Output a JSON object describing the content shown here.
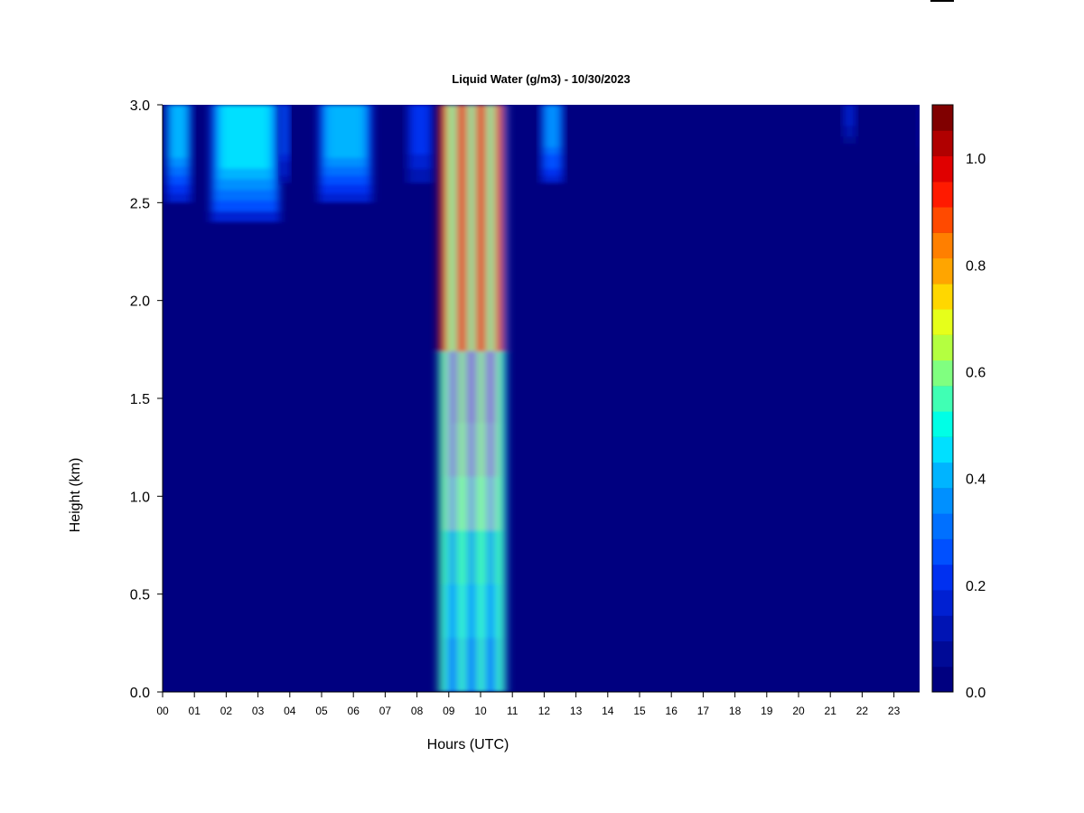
{
  "chart_data": {
    "type": "heatmap",
    "title": "Liquid Water (g/m3) - 10/30/2023",
    "xlabel": "Hours (UTC)",
    "ylabel": "Height (km)",
    "xlim": [
      0,
      24
    ],
    "ylim": [
      0,
      3.0
    ],
    "x_ticks": [
      "00",
      "01",
      "02",
      "03",
      "04",
      "05",
      "06",
      "07",
      "08",
      "09",
      "10",
      "11",
      "12",
      "13",
      "14",
      "15",
      "16",
      "17",
      "18",
      "19",
      "20",
      "21",
      "22",
      "23"
    ],
    "y_ticks": [
      "0.0",
      "0.5",
      "1.0",
      "1.5",
      "2.0",
      "2.5",
      "3.0"
    ],
    "colorbar": {
      "range": [
        0,
        1.1
      ],
      "levels": 22,
      "ticks": [
        "0.0",
        "0.2",
        "0.4",
        "0.6",
        "0.8",
        "1.0"
      ],
      "colors": [
        "#000080",
        "#000a96",
        "#0014b4",
        "#0020d2",
        "#0030f0",
        "#0050ff",
        "#0070ff",
        "#0090ff",
        "#00b4ff",
        "#00e0ff",
        "#00ffe6",
        "#40ffb4",
        "#80ff80",
        "#b4ff40",
        "#e6ff1a",
        "#ffd700",
        "#ffa500",
        "#ff7f00",
        "#ff4a00",
        "#ff1a00",
        "#e00000",
        "#b00000",
        "#800000"
      ]
    },
    "liquid_water_regions": [
      {
        "hours": [
          0.1,
          0.9
        ],
        "heights_km": [
          2.5,
          3.0
        ],
        "peak_value": 0.45
      },
      {
        "hours": [
          1.5,
          3.7
        ],
        "heights_km": [
          2.4,
          3.0
        ],
        "peak_value": 0.5
      },
      {
        "hours": [
          3.7,
          4.0
        ],
        "heights_km": [
          2.6,
          3.0
        ],
        "peak_value": 0.3
      },
      {
        "hours": [
          4.9,
          6.6
        ],
        "heights_km": [
          2.5,
          3.0
        ],
        "peak_value": 0.45
      },
      {
        "hours": [
          7.7,
          8.5
        ],
        "heights_km": [
          2.6,
          3.0
        ],
        "peak_value": 0.25
      },
      {
        "hours": [
          8.7,
          10.8
        ],
        "heights_km": [
          0.0,
          3.0
        ],
        "peak_value": 1.0
      },
      {
        "hours": [
          11.9,
          12.6
        ],
        "heights_km": [
          2.6,
          3.0
        ],
        "peak_value": 0.4
      },
      {
        "hours": [
          21.4,
          21.8
        ],
        "heights_km": [
          2.8,
          3.0
        ],
        "peak_value": 0.15
      },
      {
        "hours": [
          23.7,
          23.8
        ],
        "heights_km": [
          2.7,
          3.0
        ],
        "peak_value": 0.12
      }
    ],
    "legend": "colorbar-right",
    "grid": false
  }
}
